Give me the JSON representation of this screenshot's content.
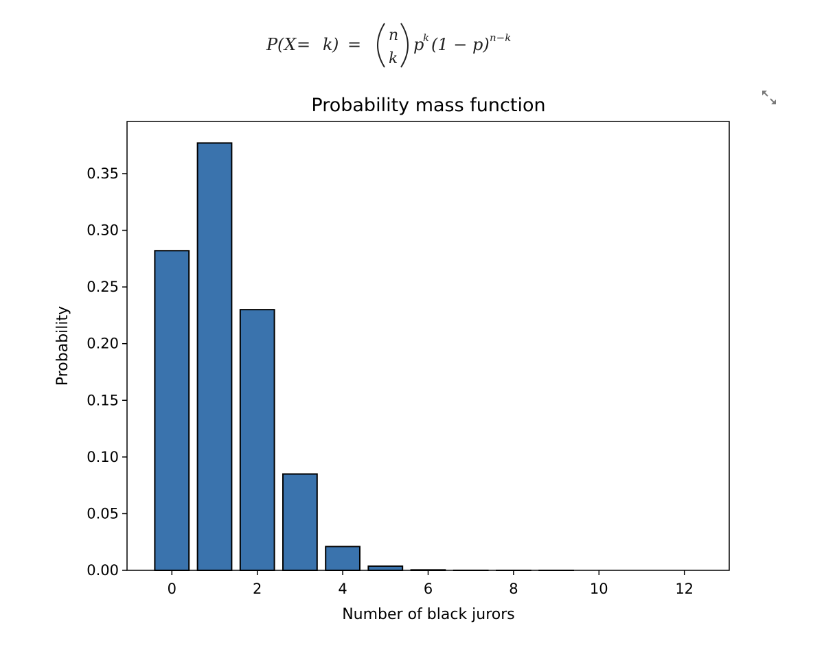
{
  "formula": {
    "lhs_P": "P",
    "lhs_open": "(",
    "lhs_X": "X",
    "lhs_eq1": " = ",
    "lhs_k": "k",
    "lhs_close": ")",
    "eq": "=",
    "binom_top": "n",
    "binom_bottom": "k",
    "p": "p",
    "p_exp": "k",
    "one_minus_p": "(1 − p)",
    "exp2": "n−k"
  },
  "expand_icon": "expand-arrows-icon",
  "chart_data": {
    "type": "bar",
    "title": "Probability mass function",
    "xlabel": "Number of black jurors",
    "ylabel": "Probability",
    "categories": [
      0,
      1,
      2,
      3,
      4,
      5,
      6,
      7,
      8,
      9,
      10,
      11,
      12
    ],
    "values": [
      0.282,
      0.377,
      0.23,
      0.085,
      0.021,
      0.0037,
      0.0004,
      3e-05,
      2e-06,
      1e-07,
      0.0,
      0.0,
      0.0
    ],
    "xlim": [
      -1.05,
      13.05
    ],
    "ylim": [
      0,
      0.396
    ],
    "xticks": [
      "0",
      "2",
      "4",
      "6",
      "8",
      "10",
      "12"
    ],
    "xtick_values": [
      0,
      2,
      4,
      6,
      8,
      10,
      12
    ],
    "yticks": [
      "0.00",
      "0.05",
      "0.10",
      "0.15",
      "0.20",
      "0.25",
      "0.30",
      "0.35"
    ],
    "ytick_values": [
      0,
      0.05,
      0.1,
      0.15,
      0.2,
      0.25,
      0.3,
      0.35
    ],
    "bar_width": 0.8,
    "bar_color": "#3a73ad",
    "edge_color": "#000000",
    "grid": false,
    "legend": "none"
  }
}
